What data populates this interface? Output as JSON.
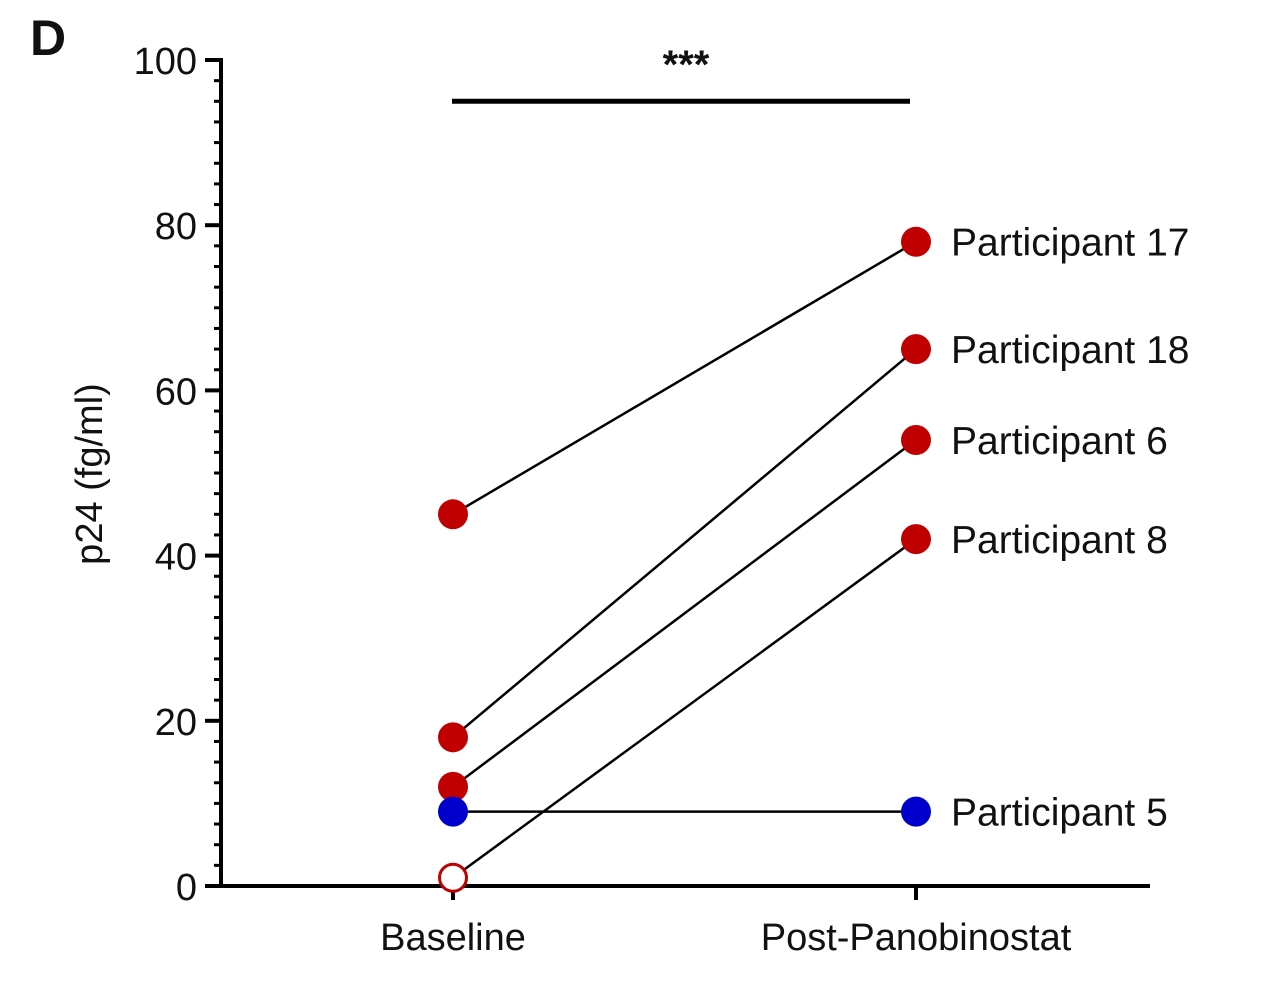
{
  "panel_label": "D",
  "chart_data": {
    "type": "line",
    "title": "",
    "xlabel": "",
    "ylabel": "p24 (fg/ml)",
    "categories": [
      "Baseline",
      "Post-Panobinostat"
    ],
    "ylim": [
      0,
      100
    ],
    "yticks": [
      0,
      20,
      40,
      60,
      80,
      100
    ],
    "minor_tick_step": 2.5,
    "grid": false,
    "significance": {
      "label": "***",
      "from": "Baseline",
      "to": "Post-Panobinostat",
      "y": 95
    },
    "series": [
      {
        "name": "Participant 17",
        "values": [
          45,
          78
        ],
        "color": "#c00000",
        "baseline_marker": "filled"
      },
      {
        "name": "Participant 18",
        "values": [
          18,
          65
        ],
        "color": "#c00000",
        "baseline_marker": "filled"
      },
      {
        "name": "Participant 6",
        "values": [
          12,
          54
        ],
        "color": "#c00000",
        "baseline_marker": "filled"
      },
      {
        "name": "Participant 8",
        "values": [
          1,
          42
        ],
        "color": "#c00000",
        "baseline_marker": "open"
      },
      {
        "name": "Participant 5",
        "values": [
          9,
          9
        ],
        "color": "#0000cc",
        "baseline_marker": "filled"
      }
    ]
  }
}
